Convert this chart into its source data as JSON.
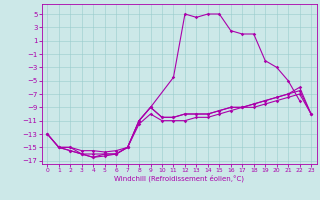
{
  "xlabel": "Windchill (Refroidissement éolien,°C)",
  "background_color": "#cce8e8",
  "line_color": "#aa00aa",
  "xlim": [
    -0.5,
    23.5
  ],
  "ylim": [
    -17.5,
    6.5
  ],
  "xticks": [
    0,
    1,
    2,
    3,
    4,
    5,
    6,
    7,
    8,
    9,
    10,
    11,
    12,
    13,
    14,
    15,
    16,
    17,
    18,
    19,
    20,
    21,
    22,
    23
  ],
  "yticks": [
    5,
    3,
    1,
    -1,
    -3,
    -5,
    -7,
    -9,
    -11,
    -13,
    -15,
    -17
  ],
  "line1_x": [
    0,
    1,
    2,
    3,
    4,
    5,
    6,
    7,
    8,
    9,
    11,
    12,
    13,
    14,
    15,
    16,
    17,
    18,
    19,
    20,
    21,
    22
  ],
  "line1_y": [
    -13,
    -15,
    -15,
    -16,
    -16,
    -16,
    -16,
    -15,
    -11,
    -9,
    -4.5,
    5,
    4.5,
    5,
    5,
    2.5,
    2,
    2,
    -2,
    -3,
    -5,
    -8
  ],
  "line2_x": [
    0,
    1,
    2,
    3,
    4,
    5,
    6,
    7,
    8,
    9,
    10,
    11,
    12,
    13,
    14,
    15,
    16,
    17,
    18,
    19,
    20,
    21,
    22,
    23
  ],
  "line2_y": [
    -13,
    -15,
    -15.5,
    -16,
    -16.5,
    -16,
    -16,
    -15,
    -11,
    -9,
    -10.5,
    -10.5,
    -10,
    -10,
    -10,
    -9.5,
    -9,
    -9,
    -8.5,
    -8,
    -7.5,
    -7,
    -6.5,
    -10
  ],
  "line3_x": [
    0,
    1,
    2,
    3,
    4,
    5,
    6,
    7,
    8,
    9,
    10,
    11,
    12,
    13,
    14,
    15,
    16,
    17,
    18,
    19,
    20,
    21,
    22,
    23
  ],
  "line3_y": [
    -13,
    -15,
    -15.5,
    -16,
    -16.5,
    -16.3,
    -16,
    -15,
    -11,
    -9,
    -10.5,
    -10.5,
    -10,
    -10,
    -10,
    -9.5,
    -9,
    -9,
    -8.5,
    -8,
    -7.5,
    -7,
    -6,
    -10
  ],
  "line4_x": [
    1,
    2,
    3,
    4,
    5,
    6,
    7,
    8,
    9,
    10,
    11,
    12,
    13,
    14,
    15,
    16,
    17,
    18,
    19,
    20,
    21,
    22,
    23
  ],
  "line4_y": [
    -15,
    -15,
    -15.5,
    -15.5,
    -15.7,
    -15.5,
    -15,
    -11.5,
    -10,
    -11,
    -11,
    -11,
    -10.5,
    -10.5,
    -10,
    -9.5,
    -9,
    -9,
    -8.5,
    -8,
    -7.5,
    -7,
    -10
  ]
}
